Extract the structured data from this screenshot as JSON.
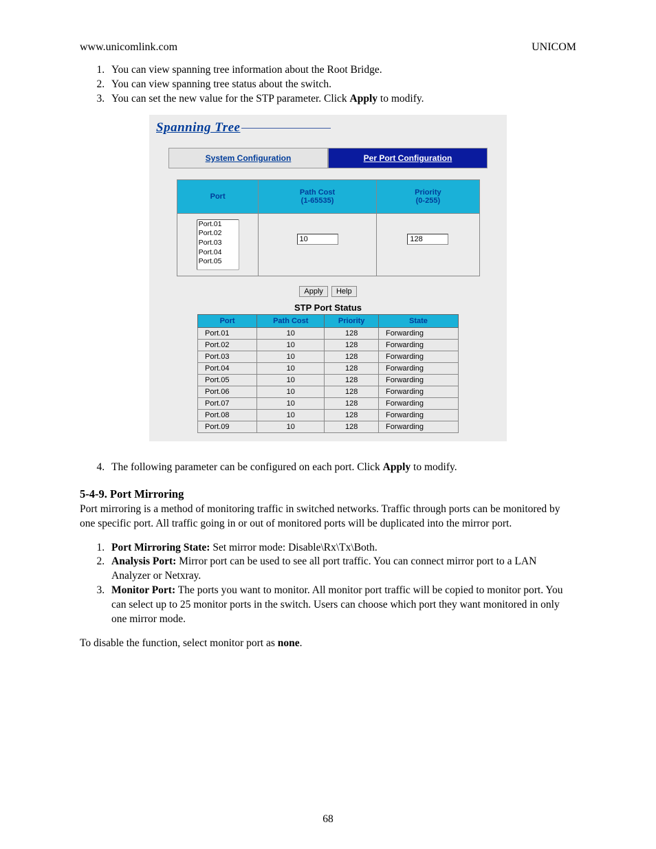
{
  "header": {
    "left": "www.unicomlink.com",
    "right": "UNICOM"
  },
  "intro_list": [
    {
      "text": "You can view spanning tree information about the Root Bridge."
    },
    {
      "text": "You can view spanning tree status about the switch."
    },
    {
      "pre": "You can set the new value for the STP parameter. Click ",
      "bold": "Apply",
      "post": " to modify."
    }
  ],
  "screenshot": {
    "title": "Spanning Tree",
    "tabs": {
      "inactive": "System Configuration",
      "active": "Per Port Configuration"
    },
    "form": {
      "headers": {
        "port": "Port",
        "path_cost": "Path Cost\n(1-65535)",
        "priority": "Priority\n(0-255)"
      },
      "port_options": [
        "Port.01",
        "Port.02",
        "Port.03",
        "Port.04",
        "Port.05"
      ],
      "path_cost_value": "10",
      "priority_value": "128"
    },
    "buttons": {
      "apply": "Apply",
      "help": "Help"
    },
    "status_title": "STP Port Status",
    "status_headers": {
      "port": "Port",
      "path_cost": "Path Cost",
      "priority": "Priority",
      "state": "State"
    },
    "status_rows": [
      {
        "port": "Port.01",
        "path_cost": "10",
        "priority": "128",
        "state": "Forwarding"
      },
      {
        "port": "Port.02",
        "path_cost": "10",
        "priority": "128",
        "state": "Forwarding"
      },
      {
        "port": "Port.03",
        "path_cost": "10",
        "priority": "128",
        "state": "Forwarding"
      },
      {
        "port": "Port.04",
        "path_cost": "10",
        "priority": "128",
        "state": "Forwarding"
      },
      {
        "port": "Port.05",
        "path_cost": "10",
        "priority": "128",
        "state": "Forwarding"
      },
      {
        "port": "Port.06",
        "path_cost": "10",
        "priority": "128",
        "state": "Forwarding"
      },
      {
        "port": "Port.07",
        "path_cost": "10",
        "priority": "128",
        "state": "Forwarding"
      },
      {
        "port": "Port.08",
        "path_cost": "10",
        "priority": "128",
        "state": "Forwarding"
      },
      {
        "port": "Port.09",
        "path_cost": "10",
        "priority": "128",
        "state": "Forwarding"
      }
    ]
  },
  "para4": {
    "pre": "The following parameter can be configured on each port. Click ",
    "bold": "Apply",
    "post": " to modify."
  },
  "section": {
    "heading": "5-4-9. Port Mirroring",
    "body": "Port mirroring is a method of monitoring traffic in switched networks. Traffic through ports can be monitored by one specific port. All traffic going in or out of monitored ports will be duplicated into the mirror port.",
    "defs": [
      {
        "term": "Port Mirroring State:",
        "text": " Set mirror mode: Disable\\Rx\\Tx\\Both."
      },
      {
        "term": "Analysis Port:",
        "text": " Mirror port can be used to see all port traffic. You can connect mirror port to a LAN Analyzer or Netxray."
      },
      {
        "term": "Monitor Port:",
        "text": " The ports you want to monitor. All monitor port traffic will be copied to monitor port. You can select up to 25 monitor ports in the switch. Users can choose which port they want monitored in only one mirror mode."
      }
    ],
    "footer_pre": "To disable the function, select monitor port as ",
    "footer_bold": "none",
    "footer_post": "."
  },
  "page_number": "68"
}
